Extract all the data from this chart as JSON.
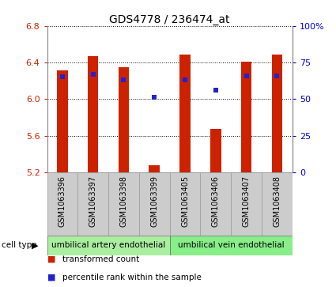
{
  "title": "GDS4778 / 236474_at",
  "samples": [
    "GSM1063396",
    "GSM1063397",
    "GSM1063398",
    "GSM1063399",
    "GSM1063405",
    "GSM1063406",
    "GSM1063407",
    "GSM1063408"
  ],
  "transformed_counts": [
    6.31,
    6.47,
    6.35,
    5.28,
    6.49,
    5.67,
    6.41,
    6.49
  ],
  "percentile_ranks": [
    65,
    67,
    63,
    51,
    63,
    56,
    66,
    66
  ],
  "ymin": 5.2,
  "ymax": 6.8,
  "yticks": [
    5.2,
    5.6,
    6.0,
    6.4,
    6.8
  ],
  "right_yticks": [
    0,
    25,
    50,
    75,
    100
  ],
  "right_yticklabels": [
    "0",
    "25",
    "50",
    "75",
    "100%"
  ],
  "bar_color": "#cc2200",
  "dot_color": "#2222cc",
  "bar_width": 0.35,
  "cell_types": [
    "umbilical artery endothelial",
    "umbilical vein endothelial"
  ],
  "cell_type_colors": [
    "#aaeea0",
    "#88ee88"
  ],
  "background_color": "#ffffff",
  "label_color_left": "#cc2200",
  "label_color_right": "#0000cc",
  "tick_label_gray": "#dddddd"
}
